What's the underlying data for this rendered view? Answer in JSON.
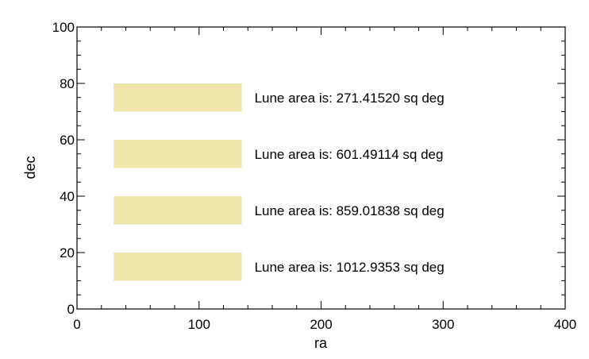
{
  "chart_data": {
    "type": "bar",
    "title": "",
    "xlabel": "ra",
    "ylabel": "dec",
    "xlim": [
      0,
      400
    ],
    "ylim": [
      0,
      100
    ],
    "x_ticks": [
      0,
      100,
      200,
      300,
      400
    ],
    "y_ticks": [
      0,
      20,
      40,
      60,
      80,
      100
    ],
    "x_minor_step": 20,
    "y_minor_step": 5,
    "grid": false,
    "fill_color": "#eee6aa",
    "lunes": [
      {
        "ra_min": 30,
        "ra_max": 135,
        "dec_min": 70,
        "dec_max": 80,
        "label": "Lune area is: 271.41520 sq deg"
      },
      {
        "ra_min": 30,
        "ra_max": 135,
        "dec_min": 50,
        "dec_max": 60,
        "label": "Lune area is: 601.49114 sq deg"
      },
      {
        "ra_min": 30,
        "ra_max": 135,
        "dec_min": 30,
        "dec_max": 40,
        "label": "Lune area is: 859.01838 sq deg"
      },
      {
        "ra_min": 30,
        "ra_max": 135,
        "dec_min": 10,
        "dec_max": 20,
        "label": "Lune area is: 1012.9353 sq deg"
      }
    ]
  }
}
